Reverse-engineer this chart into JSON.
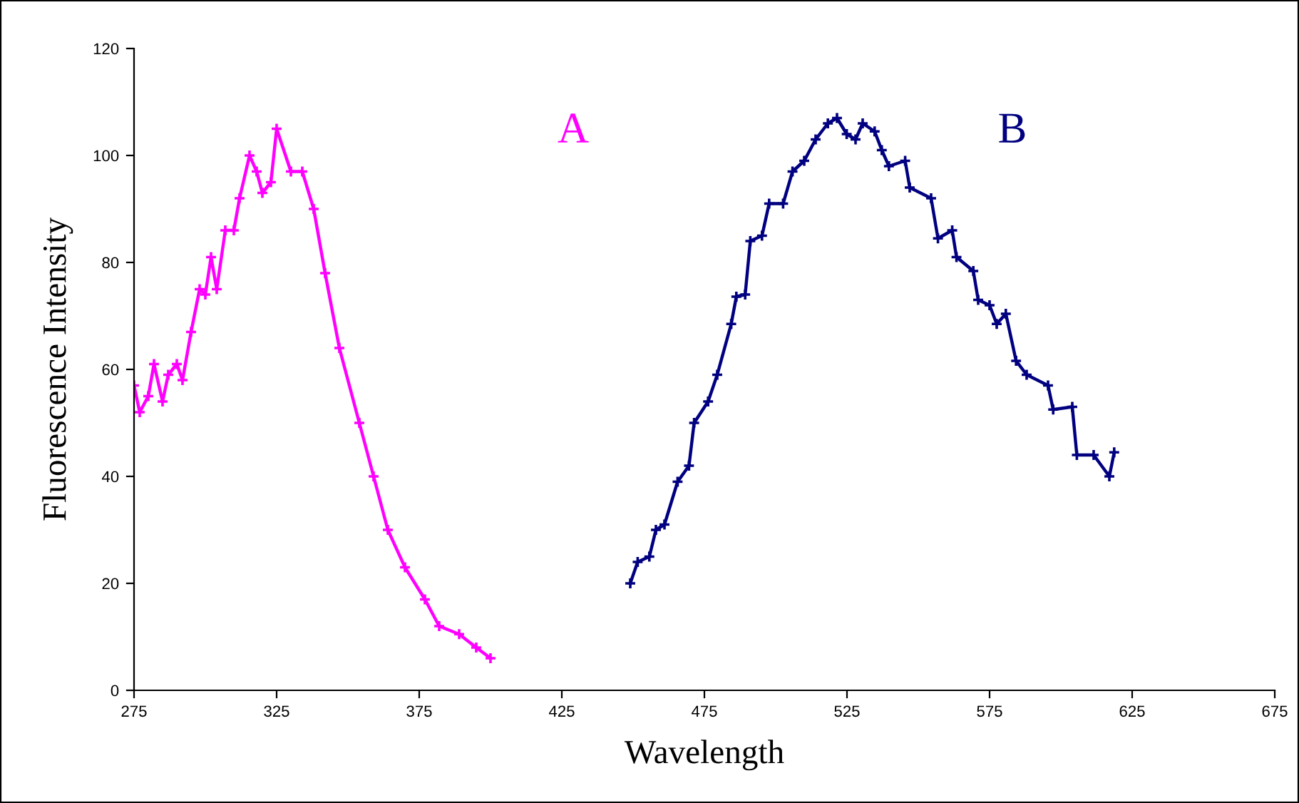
{
  "chart_data": {
    "type": "line",
    "xlabel": "Wavelength",
    "ylabel": "Fluorescence Intensity",
    "xlim": [
      275,
      675
    ],
    "xticks": [
      275,
      325,
      375,
      425,
      475,
      525,
      575,
      625,
      675
    ],
    "ylim": [
      0,
      120
    ],
    "yticks": [
      0,
      20,
      40,
      60,
      80,
      100,
      120
    ],
    "grid": false,
    "line_style": "solid",
    "series": [
      {
        "color": "#ff00ff",
        "marker": "cross",
        "x": [
          275,
          277,
          280,
          282,
          285,
          287,
          290,
          292,
          295,
          298,
          300,
          302,
          304,
          307,
          310,
          312,
          315.5,
          318,
          320,
          323,
          325,
          330,
          334,
          338,
          342,
          347,
          354,
          359,
          364,
          370,
          377,
          382,
          389,
          395,
          400
        ],
        "values": [
          57,
          52,
          55,
          61,
          54,
          59,
          61,
          58,
          67,
          75,
          74,
          81,
          75,
          86,
          86,
          92,
          100,
          97,
          93,
          95,
          105,
          97,
          97,
          90,
          78,
          64,
          50,
          40,
          30,
          23,
          17,
          12,
          10.5,
          8,
          6
        ]
      },
      {
        "color": "#000080",
        "marker": "cross",
        "x": [
          449,
          451.6,
          455.7,
          458,
          461,
          465.6,
          469.6,
          471.4,
          476.3,
          479.5,
          484.4,
          486.2,
          489.3,
          491.1,
          495.2,
          497.7,
          502.6,
          505.9,
          510,
          514,
          518.3,
          521.5,
          524.9,
          528,
          530.5,
          534.7,
          537.2,
          539.7,
          545.4,
          547,
          554.5,
          556.9,
          561.9,
          563.4,
          569.3,
          571,
          575,
          577.5,
          580.7,
          584.3,
          588,
          595.5,
          597.3,
          604,
          605.6,
          611.5,
          617,
          618.7
        ],
        "values": [
          20,
          24,
          25,
          30,
          31,
          39,
          42,
          50,
          54,
          59,
          68.5,
          73.6,
          74,
          84,
          85,
          91,
          91,
          97,
          99,
          103,
          106,
          107,
          104,
          103,
          106,
          104.5,
          101,
          98,
          99,
          94,
          92,
          84.5,
          86,
          81,
          78.4,
          73,
          72,
          68.5,
          70.4,
          61.6,
          59,
          57,
          52.5,
          53,
          44,
          44,
          40,
          44.5
        ]
      }
    ],
    "annotations": [
      "A",
      "B"
    ]
  }
}
